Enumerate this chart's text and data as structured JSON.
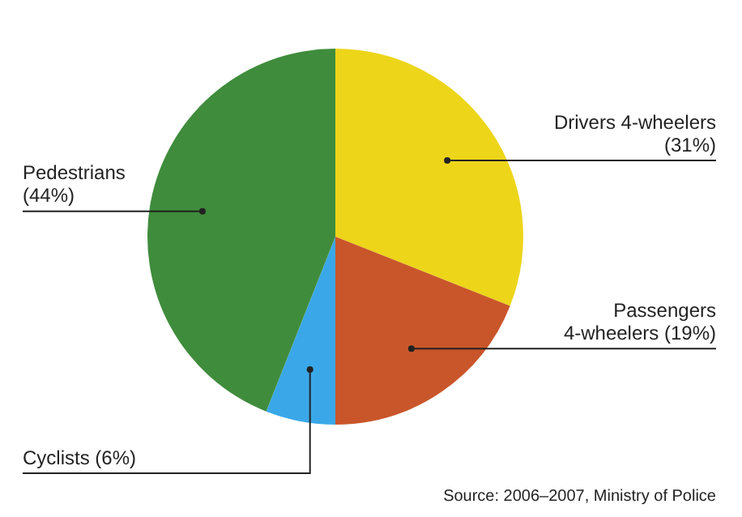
{
  "chart_data": {
    "type": "pie",
    "categories": [
      "Drivers 4-wheelers",
      "Passengers 4-wheelers",
      "Cyclists",
      "Pedestrians"
    ],
    "values": [
      31,
      19,
      6,
      44
    ],
    "colors": [
      "#edd51a",
      "#c9562a",
      "#3aa8e8",
      "#3f8c3c"
    ],
    "value_labels": [
      "(31%)",
      "(19%)",
      "(6%)",
      "(44%)"
    ],
    "annotations": [
      "Source: 2006–2007, Ministry of Police"
    ]
  }
}
